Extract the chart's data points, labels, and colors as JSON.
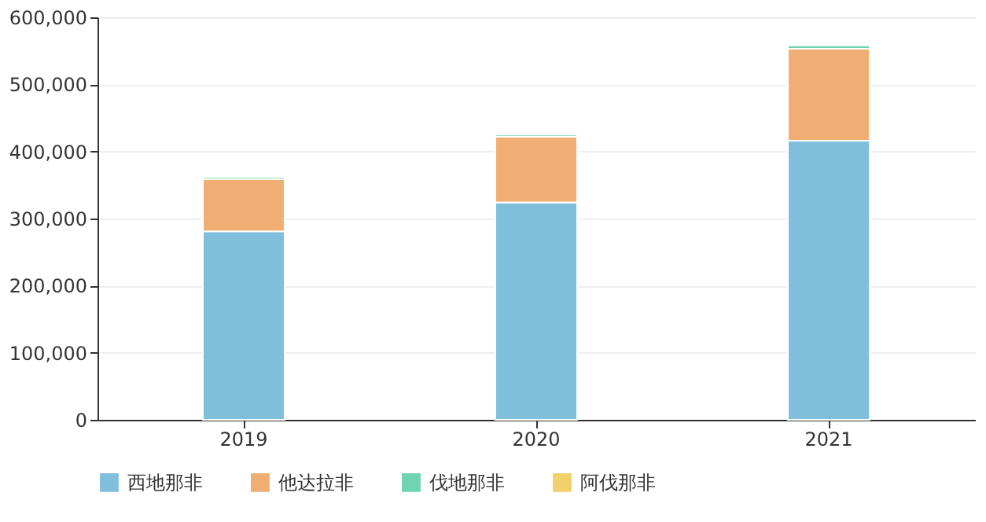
{
  "chart_data": {
    "type": "bar",
    "stacked": true,
    "categories": [
      "2019",
      "2020",
      "2021"
    ],
    "series": [
      {
        "name": "西地那非",
        "color": "#7fbfdc",
        "values": [
          281000,
          324000,
          416000
        ]
      },
      {
        "name": "他达拉非",
        "color": "#f0ae72",
        "values": [
          78000,
          98000,
          137000
        ]
      },
      {
        "name": "伐地那非",
        "color": "#6fd4b1",
        "values": [
          3000,
          3000,
          5000
        ]
      },
      {
        "name": "阿伐那非",
        "color": "#f2d06b",
        "values": [
          null,
          null,
          null
        ]
      }
    ],
    "ylim": [
      0,
      600000
    ],
    "yticks": [
      0,
      {
        "value": 100000,
        "label": "100,000"
      },
      {
        "value": 200000,
        "label": "200,000"
      },
      {
        "value": 300000,
        "label": "300,000"
      },
      {
        "value": 400000,
        "label": "400,000"
      },
      {
        "value": 500000,
        "label": "500,000"
      },
      {
        "value": 600000,
        "label": "600,000"
      }
    ],
    "grid": "y",
    "legend": "bottom"
  }
}
